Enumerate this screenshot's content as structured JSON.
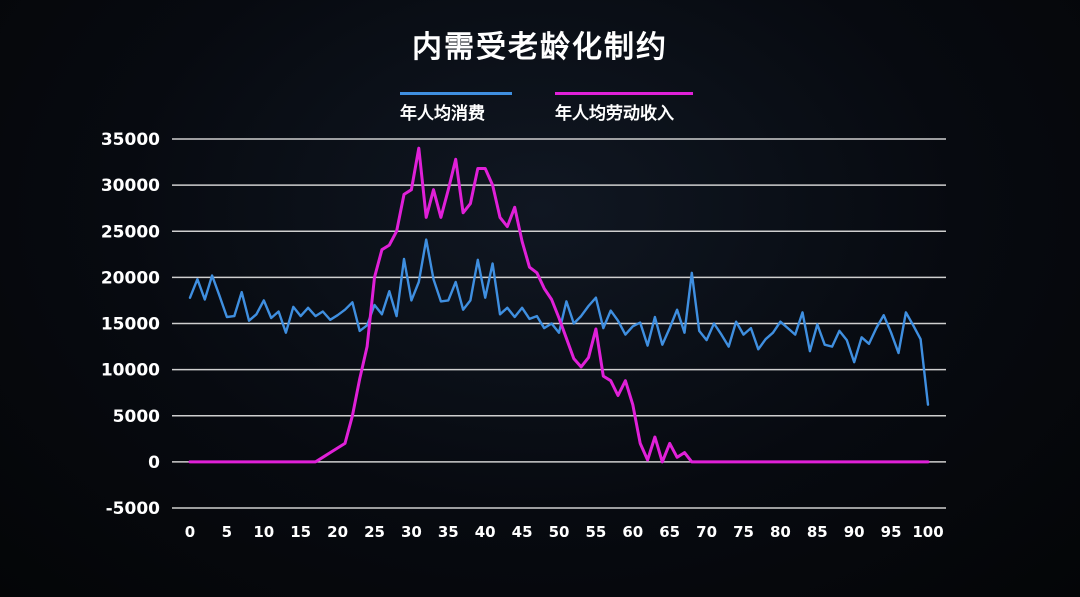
{
  "title": "内需受老龄化制约",
  "colors": {
    "background": "#06080c",
    "grid": "#cfcfcf",
    "series_consumption": "#3f8fe0",
    "series_income": "#e020d8",
    "text": "#ffffff"
  },
  "chart_data": {
    "type": "line",
    "title": "内需受老龄化制约",
    "xlabel": "",
    "ylabel": "",
    "xlim": [
      0,
      100
    ],
    "ylim": [
      -5000,
      35000
    ],
    "grid": "horizontal",
    "legend_position": "top-center",
    "y_ticks": [
      "35000",
      "30000",
      "25000",
      "20000",
      "15000",
      "10000",
      "5000",
      "0",
      "-5000"
    ],
    "x_ticks": [
      "0",
      "5",
      "10",
      "15",
      "20",
      "25",
      "30",
      "35",
      "40",
      "45",
      "50",
      "55",
      "60",
      "65",
      "70",
      "75",
      "80",
      "85",
      "90",
      "95",
      "100"
    ],
    "x": [
      0,
      1,
      2,
      3,
      4,
      5,
      6,
      7,
      8,
      9,
      10,
      11,
      12,
      13,
      14,
      15,
      16,
      17,
      18,
      19,
      20,
      21,
      22,
      23,
      24,
      25,
      26,
      27,
      28,
      29,
      30,
      31,
      32,
      33,
      34,
      35,
      36,
      37,
      38,
      39,
      40,
      41,
      42,
      43,
      44,
      45,
      46,
      47,
      48,
      49,
      50,
      51,
      52,
      53,
      54,
      55,
      56,
      57,
      58,
      59,
      60,
      61,
      62,
      63,
      64,
      65,
      66,
      67,
      68,
      69,
      70,
      71,
      72,
      73,
      74,
      75,
      76,
      77,
      78,
      79,
      80,
      81,
      82,
      83,
      84,
      85,
      86,
      87,
      88,
      89,
      90,
      91,
      92,
      93,
      94,
      95,
      96,
      97,
      98,
      99,
      100
    ],
    "series": [
      {
        "name": "年人均消费",
        "color": "#3f8fe0",
        "values": [
          17800,
          19800,
          17600,
          20200,
          18000,
          15700,
          15800,
          18400,
          15300,
          16000,
          17500,
          15600,
          16300,
          14000,
          16800,
          15800,
          16700,
          15800,
          16300,
          15400,
          15900,
          16500,
          17300,
          14200,
          14800,
          17000,
          16000,
          18500,
          15800,
          22000,
          17500,
          19500,
          24100,
          19800,
          17400,
          17500,
          19500,
          16500,
          17500,
          21900,
          17800,
          21500,
          16000,
          16700,
          15700,
          16700,
          15500,
          15800,
          14500,
          15000,
          14000,
          17400,
          15000,
          15800,
          16900,
          17800,
          14500,
          16400,
          15300,
          13800,
          14700,
          15100,
          12600,
          15700,
          12700,
          14500,
          16500,
          14000,
          20500,
          14200,
          13200,
          15000,
          13800,
          12500,
          15200,
          13800,
          14500,
          12200,
          13300,
          14000,
          15200,
          14500,
          13800,
          16200,
          12000,
          14900,
          12700,
          12500,
          14200,
          13200,
          10800,
          13500,
          12800,
          14500,
          15900,
          14000,
          11800,
          16200,
          14800,
          13300,
          6200
        ]
      },
      {
        "name": "年人均劳动收入",
        "color": "#e020d8",
        "values": [
          0,
          0,
          0,
          0,
          0,
          0,
          0,
          0,
          0,
          0,
          0,
          0,
          0,
          0,
          0,
          0,
          0,
          0,
          500,
          1000,
          1500,
          2000,
          5000,
          9000,
          12500,
          20000,
          23000,
          23500,
          25000,
          29000,
          29500,
          34000,
          26500,
          29500,
          26500,
          29500,
          32800,
          27000,
          28000,
          31800,
          31800,
          30000,
          26500,
          25500,
          27600,
          23900,
          21100,
          20500,
          18800,
          17600,
          15600,
          13400,
          11200,
          10300,
          11300,
          14400,
          9300,
          8800,
          7200,
          8800,
          6200,
          2000,
          200,
          2700,
          0,
          2000,
          500,
          1000,
          0,
          0,
          0,
          0,
          0,
          0,
          0,
          0,
          0,
          0,
          0,
          0,
          0,
          0,
          0,
          0,
          0,
          0,
          0,
          0,
          0,
          0,
          0,
          0,
          0,
          0,
          0,
          0,
          0,
          0,
          0,
          0,
          0
        ]
      }
    ]
  }
}
